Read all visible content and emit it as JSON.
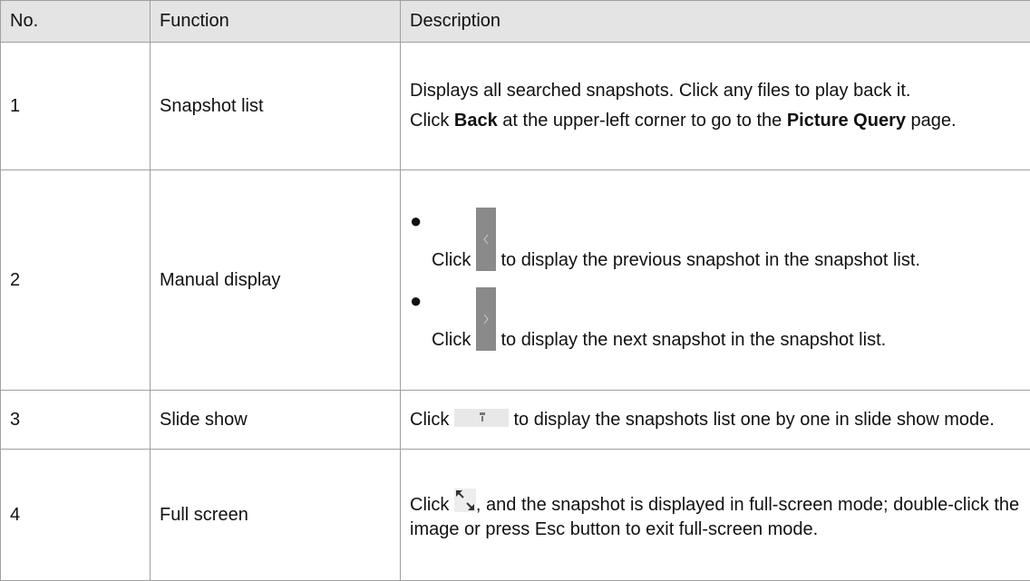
{
  "table": {
    "headers": [
      "No.",
      "Function",
      "Description"
    ],
    "rows": [
      {
        "no": "1",
        "function": "Snapshot list",
        "description": [
          [
            "Displays all searched snapshots. Click any files to play back it."
          ],
          [
            "Click",
            "Back",
            "at the upper-left corner to go to the",
            "Picture Query",
            "page."
          ]
        ]
      },
      {
        "no": "2",
        "function": "Manual display",
        "description": [
          [
            "Click",
            "to display the previous snapshot in the snapshot list."
          ],
          [
            "Click",
            "to display the next snapshot in the snapshot list."
          ]
        ]
      },
      {
        "no": "3",
        "function": "Slide show",
        "description": [
          [
            "Click",
            "to display the snapshots list one by one in slide show mode."
          ]
        ]
      },
      {
        "no": "4",
        "function": "Full screen",
        "description": [
          [
            "Click",
            ", and the snapshot is displayed in full-screen mode; double-click the image or press Esc button to exit full-screen mode."
          ]
        ]
      }
    ]
  }
}
